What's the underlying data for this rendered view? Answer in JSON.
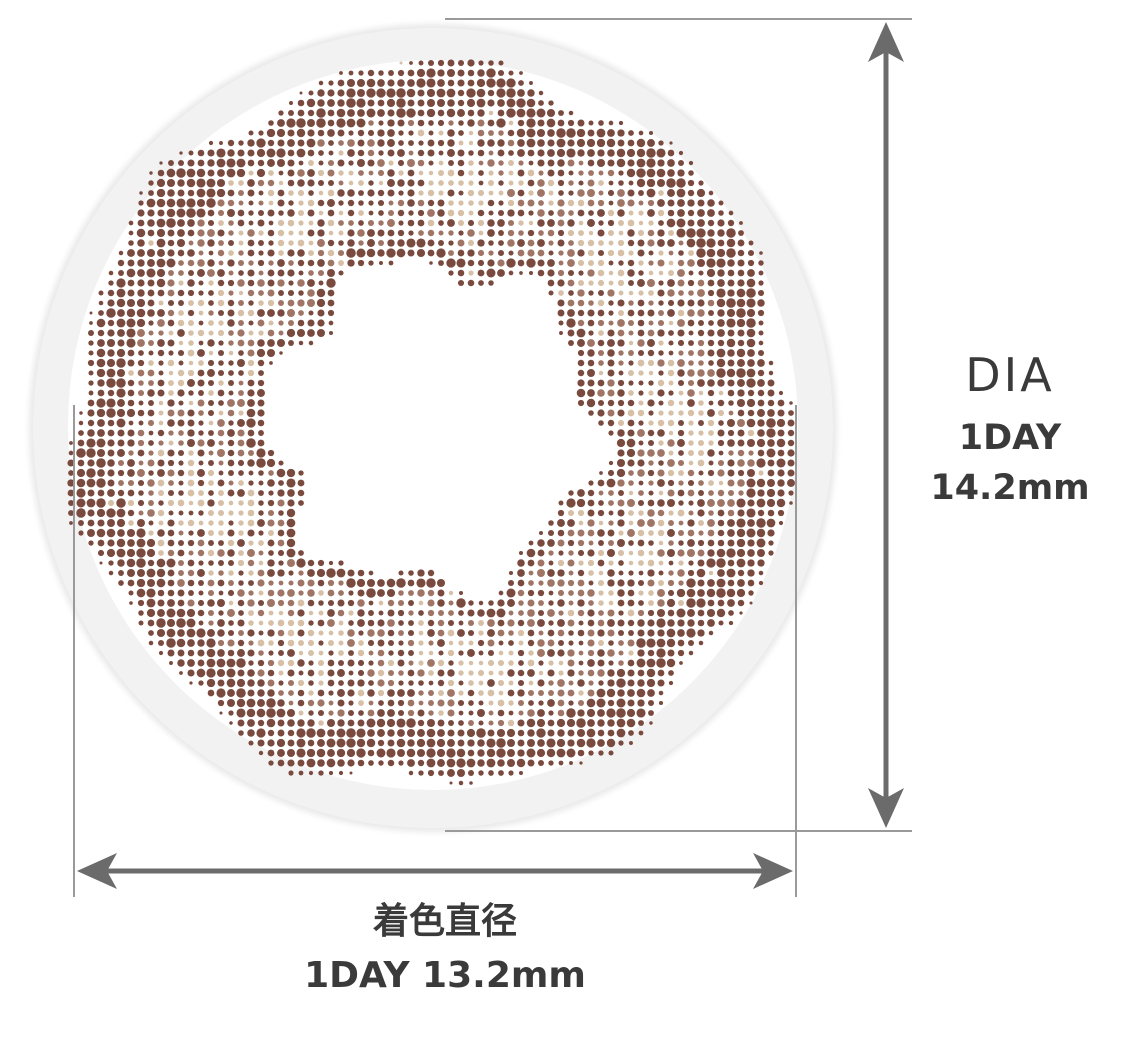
{
  "lens": {
    "outer_ring_color": "#f2f2f2",
    "dot_dark_color": "#7a4a3e",
    "dot_mid_color": "#a07565",
    "dot_light_color": "#d7c0a6"
  },
  "dimension_lines": {
    "color": "#6b6b6b",
    "guide_color": "#9a9a9a"
  },
  "dia": {
    "title": "DIA",
    "line1": "1DAY",
    "line2": "14.2mm"
  },
  "color_diameter": {
    "title": "着色直径",
    "value": "1DAY  13.2mm"
  }
}
